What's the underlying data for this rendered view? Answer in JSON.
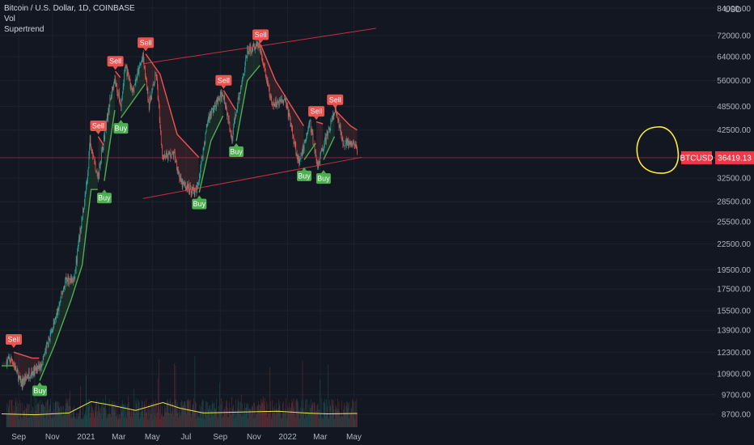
{
  "header": {
    "symbol_line": "Bitcoin / U.S. Dollar, 1D, COINBASE",
    "indicator_vol": "Vol",
    "indicator_supertrend": "Supertrend",
    "currency": "USD"
  },
  "colors": {
    "background": "#131722",
    "up": "#26a69a",
    "down": "#ef5350",
    "supertrend_up": "#4caf50",
    "supertrend_down": "#ef5350",
    "channel": "#f23645",
    "volume_ma": "#f0e442",
    "annotation": "#ffeb3b",
    "text": "#b2b5be"
  },
  "chart_data": {
    "type": "line",
    "title": "Bitcoin / U.S. Dollar, 1D, COINBASE",
    "y_scale": "log",
    "y_ticks": [
      "84000.00",
      "72000.00",
      "64000.00",
      "56000.00",
      "48500.00",
      "42500.00",
      "36419.13",
      "32500.00",
      "28500.00",
      "25500.00",
      "22500.00",
      "19500.00",
      "17500.00",
      "15500.00",
      "13900.00",
      "12300.00",
      "10900.00",
      "9700.00",
      "8700.00"
    ],
    "x_ticks": [
      "Sep",
      "Nov",
      "2021",
      "Mar",
      "May",
      "Jul",
      "Sep",
      "Nov",
      "2022",
      "Mar",
      "May"
    ],
    "current_price": {
      "label": "BTCUSD",
      "value": "36419.13"
    },
    "price_series": [
      {
        "date": "2020-08-10",
        "close": 11700
      },
      {
        "date": "2020-08-20",
        "close": 11800
      },
      {
        "date": "2020-09-05",
        "close": 10300
      },
      {
        "date": "2020-09-20",
        "close": 10900
      },
      {
        "date": "2020-10-10",
        "close": 11300
      },
      {
        "date": "2020-10-25",
        "close": 13100
      },
      {
        "date": "2020-11-10",
        "close": 15300
      },
      {
        "date": "2020-11-25",
        "close": 18500
      },
      {
        "date": "2020-12-10",
        "close": 18300
      },
      {
        "date": "2020-12-20",
        "close": 23500
      },
      {
        "date": "2021-01-03",
        "close": 32000
      },
      {
        "date": "2021-01-08",
        "close": 40500
      },
      {
        "date": "2021-01-22",
        "close": 32500
      },
      {
        "date": "2021-02-08",
        "close": 45500
      },
      {
        "date": "2021-02-21",
        "close": 57000
      },
      {
        "date": "2021-03-05",
        "close": 48500
      },
      {
        "date": "2021-03-13",
        "close": 61000
      },
      {
        "date": "2021-03-25",
        "close": 52500
      },
      {
        "date": "2021-04-14",
        "close": 64000
      },
      {
        "date": "2021-04-25",
        "close": 49000
      },
      {
        "date": "2021-05-08",
        "close": 58000
      },
      {
        "date": "2021-05-19",
        "close": 37000
      },
      {
        "date": "2021-06-10",
        "close": 37000
      },
      {
        "date": "2021-06-22",
        "close": 31500
      },
      {
        "date": "2021-07-20",
        "close": 30000
      },
      {
        "date": "2021-08-10",
        "close": 45500
      },
      {
        "date": "2021-09-06",
        "close": 52500
      },
      {
        "date": "2021-09-22",
        "close": 41000
      },
      {
        "date": "2021-10-20",
        "close": 66000
      },
      {
        "date": "2021-11-10",
        "close": 68500
      },
      {
        "date": "2021-12-04",
        "close": 48500
      },
      {
        "date": "2021-12-27",
        "close": 51000
      },
      {
        "date": "2022-01-22",
        "close": 35000
      },
      {
        "date": "2022-02-10",
        "close": 44500
      },
      {
        "date": "2022-02-24",
        "close": 35000
      },
      {
        "date": "2022-03-28",
        "close": 47500
      },
      {
        "date": "2022-04-11",
        "close": 40000
      },
      {
        "date": "2022-04-25",
        "close": 39000
      },
      {
        "date": "2022-05-04",
        "close": 39500
      },
      {
        "date": "2022-05-07",
        "close": 36419
      }
    ],
    "supertrend": [
      {
        "date": "2020-08-01",
        "value": 11400,
        "dir": "up"
      },
      {
        "date": "2020-08-22",
        "value": 11400,
        "dir": "up"
      },
      {
        "date": "2020-08-23",
        "value": 12300,
        "dir": "down"
      },
      {
        "date": "2020-09-25",
        "value": 11900,
        "dir": "down"
      },
      {
        "date": "2020-10-08",
        "value": 11900,
        "dir": "down"
      },
      {
        "date": "2020-10-09",
        "value": 10500,
        "dir": "up"
      },
      {
        "date": "2020-11-05",
        "value": 12800,
        "dir": "up"
      },
      {
        "date": "2020-12-05",
        "value": 16500,
        "dir": "up"
      },
      {
        "date": "2020-12-25",
        "value": 20000,
        "dir": "up"
      },
      {
        "date": "2021-01-10",
        "value": 30500,
        "dir": "up"
      },
      {
        "date": "2021-01-22",
        "value": 30500,
        "dir": "up"
      },
      {
        "date": "2021-01-23",
        "value": 41000,
        "dir": "down"
      },
      {
        "date": "2021-02-02",
        "value": 39000,
        "dir": "down"
      },
      {
        "date": "2021-02-03",
        "value": 32000,
        "dir": "up"
      },
      {
        "date": "2021-02-22",
        "value": 47500,
        "dir": "up"
      },
      {
        "date": "2021-02-23",
        "value": 59000,
        "dir": "down"
      },
      {
        "date": "2021-03-04",
        "value": 57000,
        "dir": "down"
      },
      {
        "date": "2021-03-05",
        "value": 45500,
        "dir": "up"
      },
      {
        "date": "2021-04-18",
        "value": 55000,
        "dir": "up"
      },
      {
        "date": "2021-04-19",
        "value": 65000,
        "dir": "down"
      },
      {
        "date": "2021-05-15",
        "value": 58000,
        "dir": "down"
      },
      {
        "date": "2021-06-15",
        "value": 41500,
        "dir": "down"
      },
      {
        "date": "2021-07-24",
        "value": 36500,
        "dir": "down"
      },
      {
        "date": "2021-07-25",
        "value": 30000,
        "dir": "up"
      },
      {
        "date": "2021-08-15",
        "value": 40000,
        "dir": "up"
      },
      {
        "date": "2021-09-06",
        "value": 46000,
        "dir": "up"
      },
      {
        "date": "2021-09-07",
        "value": 53000,
        "dir": "down"
      },
      {
        "date": "2021-09-29",
        "value": 47500,
        "dir": "down"
      },
      {
        "date": "2021-09-30",
        "value": 40000,
        "dir": "up"
      },
      {
        "date": "2021-10-20",
        "value": 56000,
        "dir": "up"
      },
      {
        "date": "2021-11-12",
        "value": 61000,
        "dir": "up"
      },
      {
        "date": "2021-11-13",
        "value": 68500,
        "dir": "down"
      },
      {
        "date": "2021-12-10",
        "value": 56000,
        "dir": "down"
      },
      {
        "date": "2022-01-08",
        "value": 48500,
        "dir": "down"
      },
      {
        "date": "2022-01-30",
        "value": 43500,
        "dir": "down"
      },
      {
        "date": "2022-01-31",
        "value": 36000,
        "dir": "up"
      },
      {
        "date": "2022-02-21",
        "value": 39500,
        "dir": "up"
      },
      {
        "date": "2022-02-22",
        "value": 44500,
        "dir": "down"
      },
      {
        "date": "2022-03-06",
        "value": 44000,
        "dir": "down"
      },
      {
        "date": "2022-03-07",
        "value": 36000,
        "dir": "up"
      },
      {
        "date": "2022-03-27",
        "value": 41000,
        "dir": "up"
      },
      {
        "date": "2022-03-28",
        "value": 47500,
        "dir": "down"
      },
      {
        "date": "2022-04-25",
        "value": 43500,
        "dir": "down"
      },
      {
        "date": "2022-05-07",
        "value": 42500,
        "dir": "down"
      }
    ],
    "signals": [
      {
        "label": "Sell",
        "date": "2020-08-23",
        "price": 12600
      },
      {
        "label": "Buy",
        "date": "2020-10-09",
        "price": 10400
      },
      {
        "label": "Sell",
        "date": "2021-01-23",
        "price": 41500
      },
      {
        "label": "Buy",
        "date": "2021-02-03",
        "price": 30500
      },
      {
        "label": "Sell",
        "date": "2021-02-23",
        "price": 59500
      },
      {
        "label": "Buy",
        "date": "2021-03-05",
        "price": 45000
      },
      {
        "label": "Sell",
        "date": "2021-04-19",
        "price": 66000
      },
      {
        "label": "Buy",
        "date": "2021-07-25",
        "price": 29500
      },
      {
        "label": "Sell",
        "date": "2021-09-07",
        "price": 53500
      },
      {
        "label": "Buy",
        "date": "2021-09-30",
        "price": 39500
      },
      {
        "label": "Sell",
        "date": "2021-11-13",
        "price": 69000
      },
      {
        "label": "Buy",
        "date": "2022-01-31",
        "price": 34500
      },
      {
        "label": "Sell",
        "date": "2022-02-22",
        "price": 45000
      },
      {
        "label": "Buy",
        "date": "2022-03-07",
        "price": 34000
      },
      {
        "label": "Sell",
        "date": "2022-03-28",
        "price": 48000
      }
    ],
    "channel_lines": [
      {
        "from": {
          "date": "2021-04-14",
          "price": 61500
        },
        "to": {
          "date": "2022-06-10",
          "price": 75000
        }
      },
      {
        "from": {
          "date": "2021-04-14",
          "price": 29000
        },
        "to": {
          "date": "2022-05-15",
          "price": 36500
        }
      }
    ],
    "horizontal_line": {
      "price": 36419
    },
    "volume_ma": [
      {
        "date": "2020-08-01",
        "value": 0.12
      },
      {
        "date": "2020-10-01",
        "value": 0.1
      },
      {
        "date": "2020-12-01",
        "value": 0.14
      },
      {
        "date": "2021-01-10",
        "value": 0.4
      },
      {
        "date": "2021-02-15",
        "value": 0.32
      },
      {
        "date": "2021-04-01",
        "value": 0.2
      },
      {
        "date": "2021-05-20",
        "value": 0.38
      },
      {
        "date": "2021-06-20",
        "value": 0.25
      },
      {
        "date": "2021-08-01",
        "value": 0.14
      },
      {
        "date": "2021-10-01",
        "value": 0.16
      },
      {
        "date": "2021-12-15",
        "value": 0.18
      },
      {
        "date": "2022-02-01",
        "value": 0.14
      },
      {
        "date": "2022-03-15",
        "value": 0.12
      },
      {
        "date": "2022-05-07",
        "value": 0.13
      }
    ]
  }
}
